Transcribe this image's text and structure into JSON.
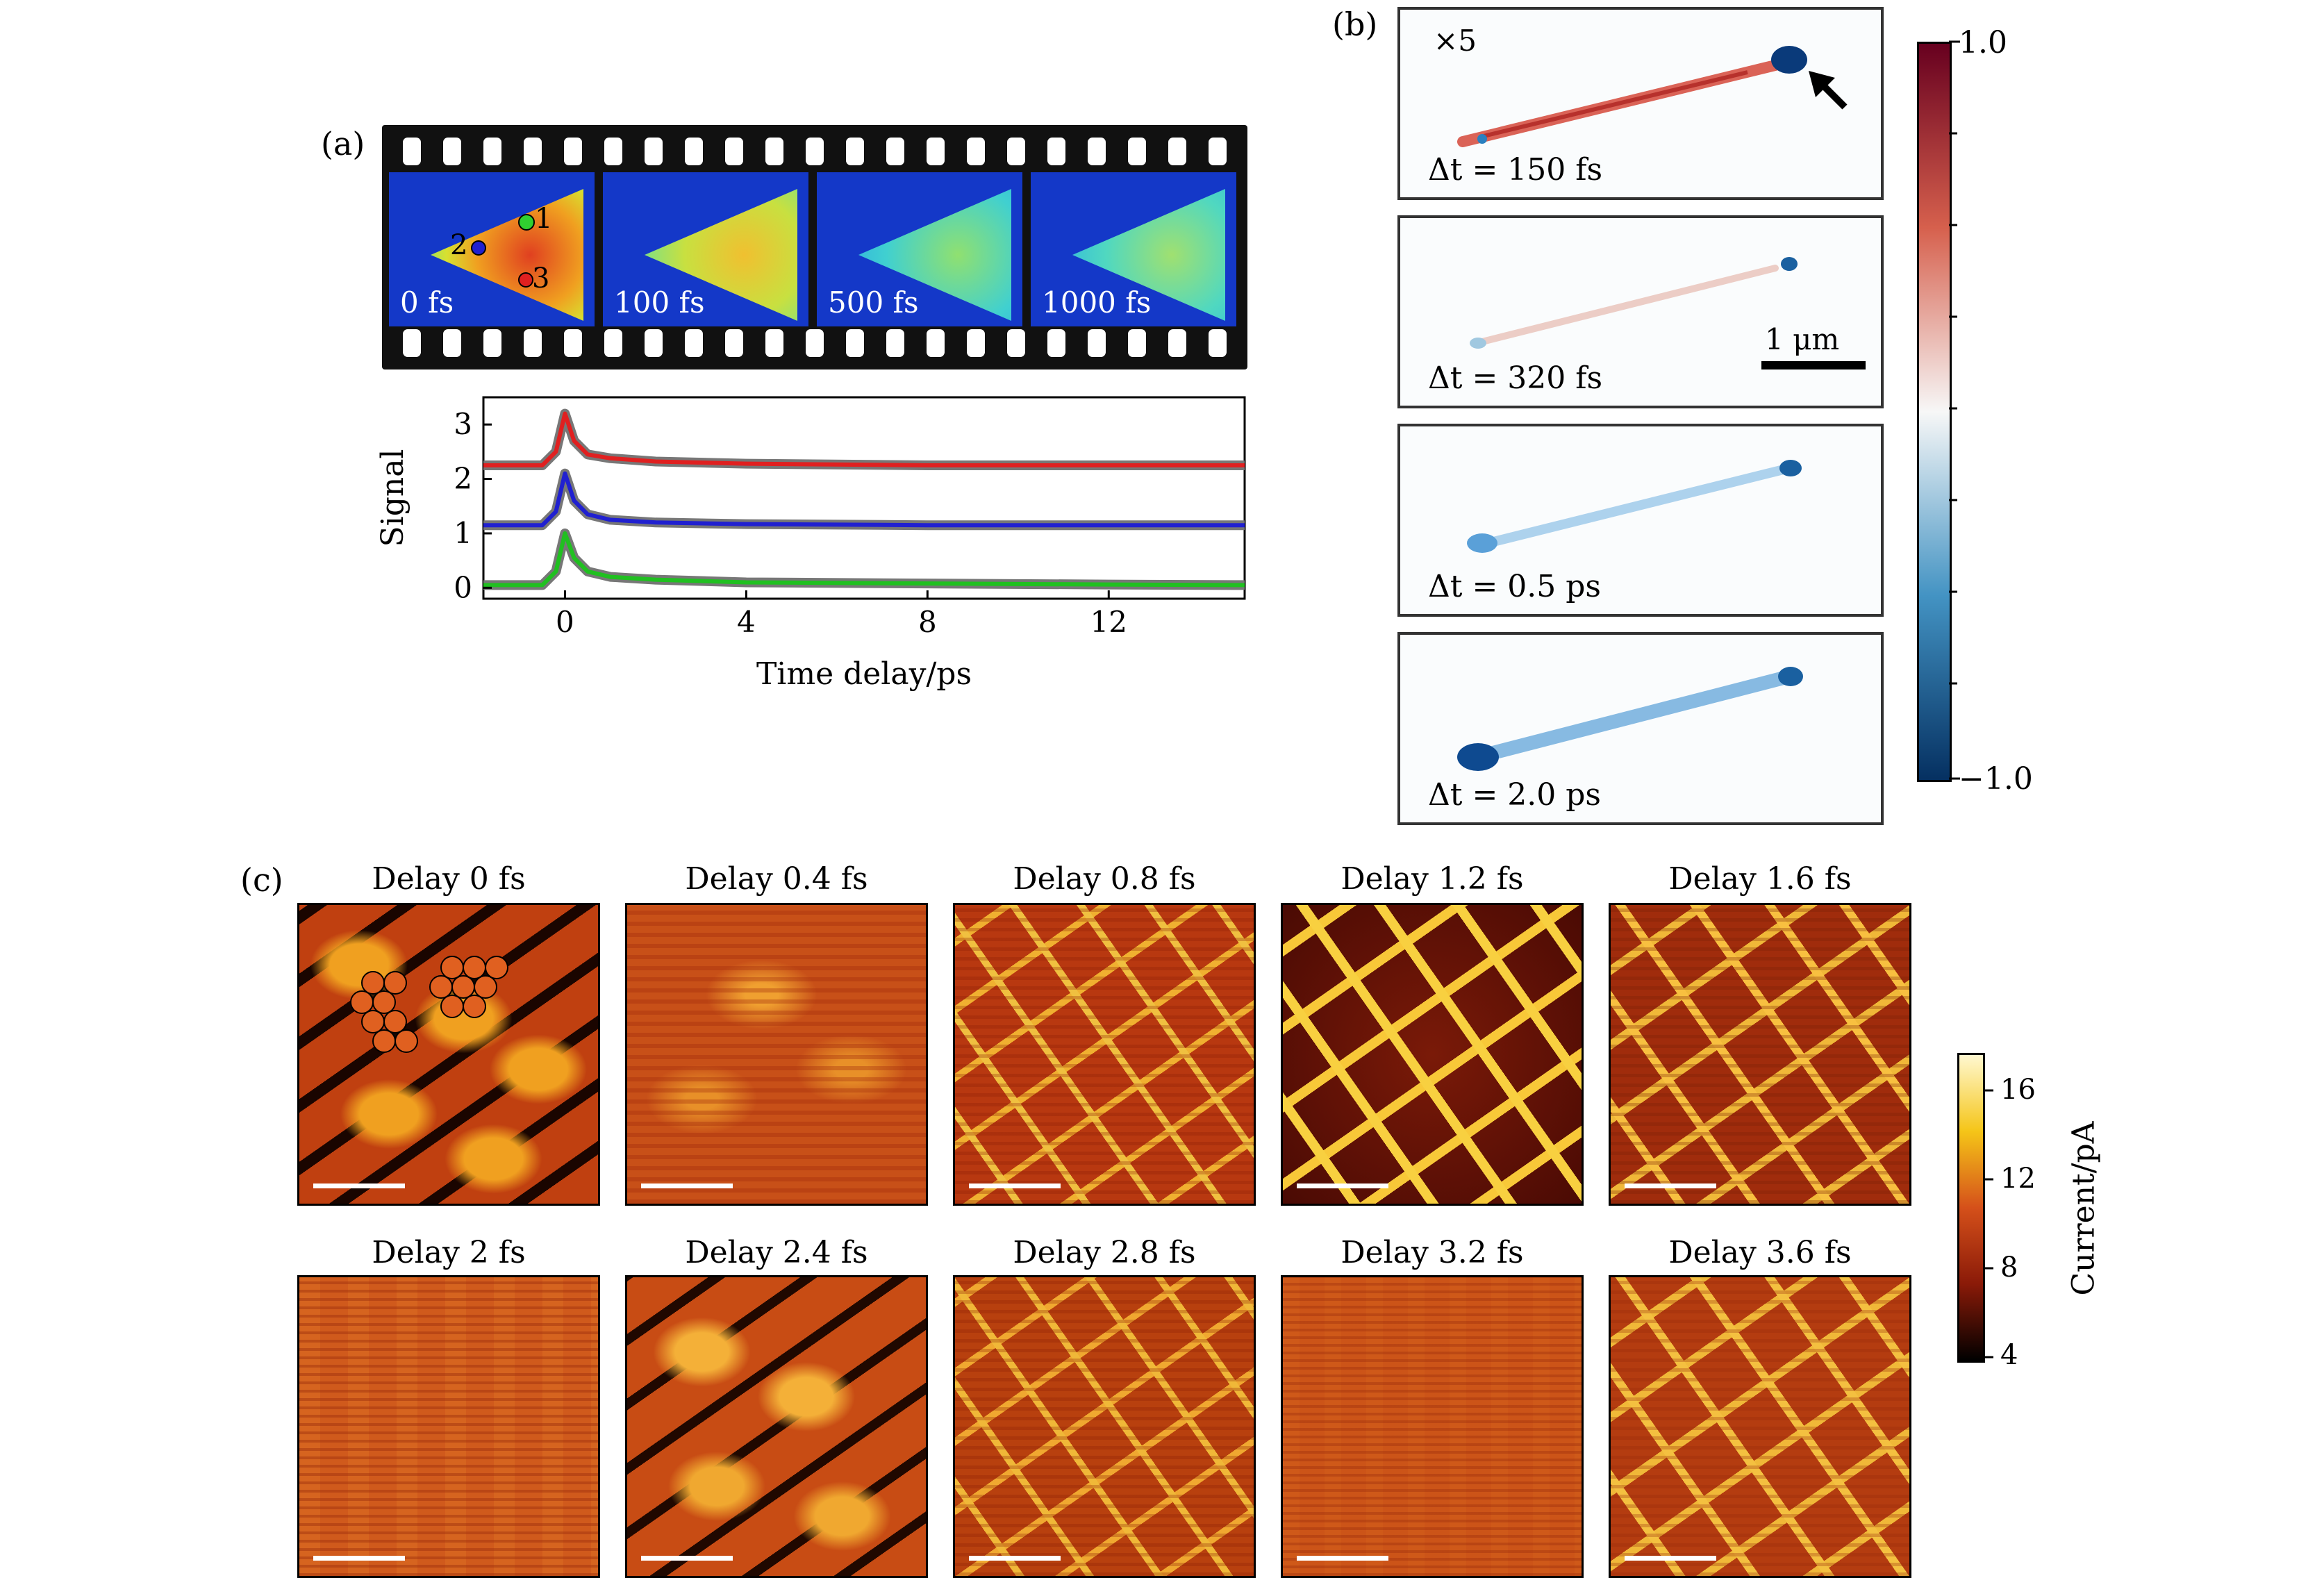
{
  "panel_a": {
    "label": "(a)",
    "frames": [
      "0 fs",
      "100 fs",
      "500 fs",
      "1000 fs"
    ],
    "markers": [
      "1",
      "2",
      "3"
    ],
    "chart_data": {
      "type": "line",
      "title": "",
      "xlabel": "Time delay/ps",
      "ylabel": "Signal",
      "xlim": [
        -1.8,
        15
      ],
      "ylim": [
        -0.2,
        3.5
      ],
      "xticks": [
        0,
        4,
        8,
        12
      ],
      "yticks": [
        0,
        1,
        2,
        3
      ],
      "grid": false,
      "series": [
        {
          "color": "#e02020",
          "x": [
            -1.8,
            -0.5,
            -0.2,
            0,
            0.2,
            0.5,
            1,
            2,
            4,
            8,
            12,
            15
          ],
          "values": [
            2.25,
            2.25,
            2.5,
            3.2,
            2.7,
            2.45,
            2.38,
            2.32,
            2.28,
            2.25,
            2.25,
            2.25
          ]
        },
        {
          "color": "#2020d0",
          "x": [
            -1.8,
            -0.5,
            -0.2,
            0,
            0.2,
            0.5,
            1,
            2,
            4,
            8,
            12,
            15
          ],
          "values": [
            1.15,
            1.15,
            1.4,
            2.1,
            1.6,
            1.35,
            1.25,
            1.2,
            1.17,
            1.15,
            1.15,
            1.15
          ]
        },
        {
          "color": "#20c020",
          "x": [
            -1.8,
            -0.5,
            -0.2,
            0,
            0.2,
            0.5,
            1,
            2,
            4,
            8,
            12,
            15
          ],
          "values": [
            0.05,
            0.05,
            0.3,
            1.0,
            0.55,
            0.3,
            0.2,
            0.15,
            0.1,
            0.08,
            0.06,
            0.05
          ]
        }
      ]
    }
  },
  "panel_b": {
    "label": "(b)",
    "multiplier": "×5",
    "scale_label": "1 μm",
    "frames": [
      "Δt = 150 fs",
      "Δt = 320 fs",
      "Δt = 0.5 ps",
      "Δt = 2.0 ps"
    ],
    "colorbar": {
      "max_label": "1.0",
      "min_label": "−1.0",
      "colors": [
        "#67001f",
        "#d6604d",
        "#f7f7f7",
        "#4393c3",
        "#053061"
      ]
    }
  },
  "panel_c": {
    "label": "(c)",
    "frames": [
      "Delay 0 fs",
      "Delay 0.4 fs",
      "Delay 0.8 fs",
      "Delay 1.2 fs",
      "Delay 1.6 fs",
      "Delay 2 fs",
      "Delay 2.4 fs",
      "Delay 2.8 fs",
      "Delay 3.2 fs",
      "Delay 3.6 fs"
    ],
    "colorbar": {
      "label": "Current/pA",
      "ticks": [
        "16",
        "12",
        "8",
        "4"
      ],
      "colors": [
        "#fff8d0",
        "#f5c518",
        "#d5501a",
        "#8a1a08",
        "#000000"
      ]
    }
  }
}
